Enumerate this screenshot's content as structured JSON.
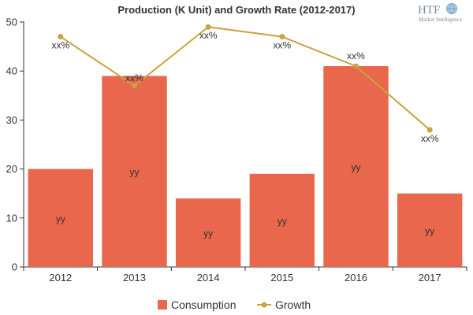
{
  "chart_data": {
    "type": "bar",
    "title": "Production (K Unit) and Growth Rate (2012-2017)",
    "categories": [
      "2012",
      "2013",
      "2014",
      "2015",
      "2016",
      "2017"
    ],
    "ylim": [
      0,
      50
    ],
    "yticks": [
      0,
      10,
      20,
      30,
      40,
      50
    ],
    "grid": false,
    "legend_position": "bottom-center",
    "series": [
      {
        "name": "Consumption",
        "type": "bar",
        "color": "#e8674d",
        "values": [
          20,
          39,
          14,
          19,
          41,
          15
        ],
        "labels": [
          "yy",
          "yy",
          "yy",
          "yy",
          "yy",
          "yy"
        ]
      },
      {
        "name": "Growth",
        "type": "line",
        "color": "#c8a441",
        "values": [
          47,
          37,
          49,
          47,
          41,
          28
        ],
        "labels": [
          "xx%",
          "xx%",
          "xx%",
          "xx%",
          "xx%",
          "xx%"
        ]
      }
    ]
  },
  "logo": {
    "text": "HTF",
    "subtext": "Market Intelligence"
  }
}
